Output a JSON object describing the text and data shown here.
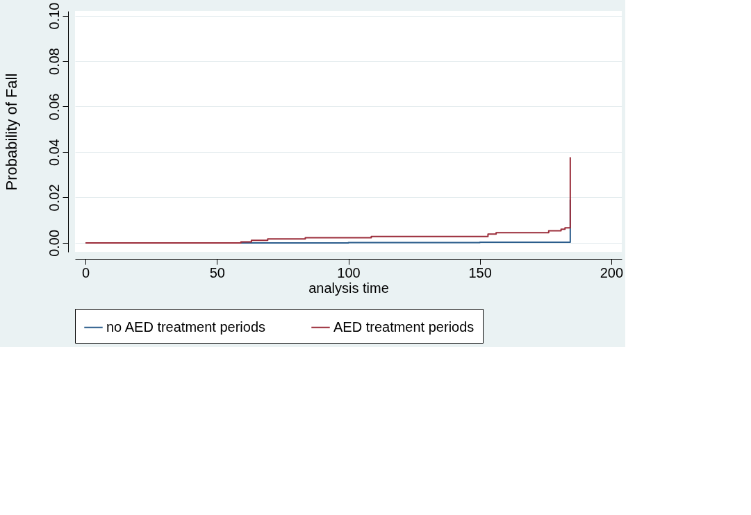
{
  "chart_data": {
    "type": "step",
    "xlabel": "analysis time",
    "ylabel": "Probability of Fall",
    "xlim": [
      -4,
      204
    ],
    "xticks": [
      0,
      50,
      100,
      150,
      200
    ],
    "ylim": [
      -0.004,
      0.102
    ],
    "yticks": [
      {
        "value": 0,
        "label": "0.00"
      },
      {
        "value": 0.02,
        "label": "0.02"
      },
      {
        "value": 0.04,
        "label": "0.04"
      },
      {
        "value": 0.06,
        "label": "0.06"
      },
      {
        "value": 0.08,
        "label": "0.08"
      },
      {
        "value": 0.1,
        "label": "0.10"
      }
    ],
    "grid": "y",
    "legend": "bottom",
    "line_style": "solid",
    "marker": "none",
    "series": [
      {
        "name": "no AED treatment periods",
        "color": "#2b5d8c",
        "x": [
          0,
          59,
          100,
          150,
          184.4,
          184.4
        ],
        "values": [
          0,
          0,
          0.0001,
          0.0003,
          0.0004,
          0.019
        ]
      },
      {
        "name": "AED treatment periods",
        "color": "#9b2d3a",
        "x": [
          0,
          59.1,
          63.1,
          69.3,
          83.6,
          108.7,
          153.1,
          156.2,
          176.2,
          180.9,
          182.4,
          184.4,
          184.4
        ],
        "values": [
          0,
          0.0004,
          0.0011,
          0.0017,
          0.0023,
          0.0028,
          0.0039,
          0.0045,
          0.0053,
          0.006,
          0.0066,
          0.0066,
          0.0377
        ]
      }
    ]
  }
}
